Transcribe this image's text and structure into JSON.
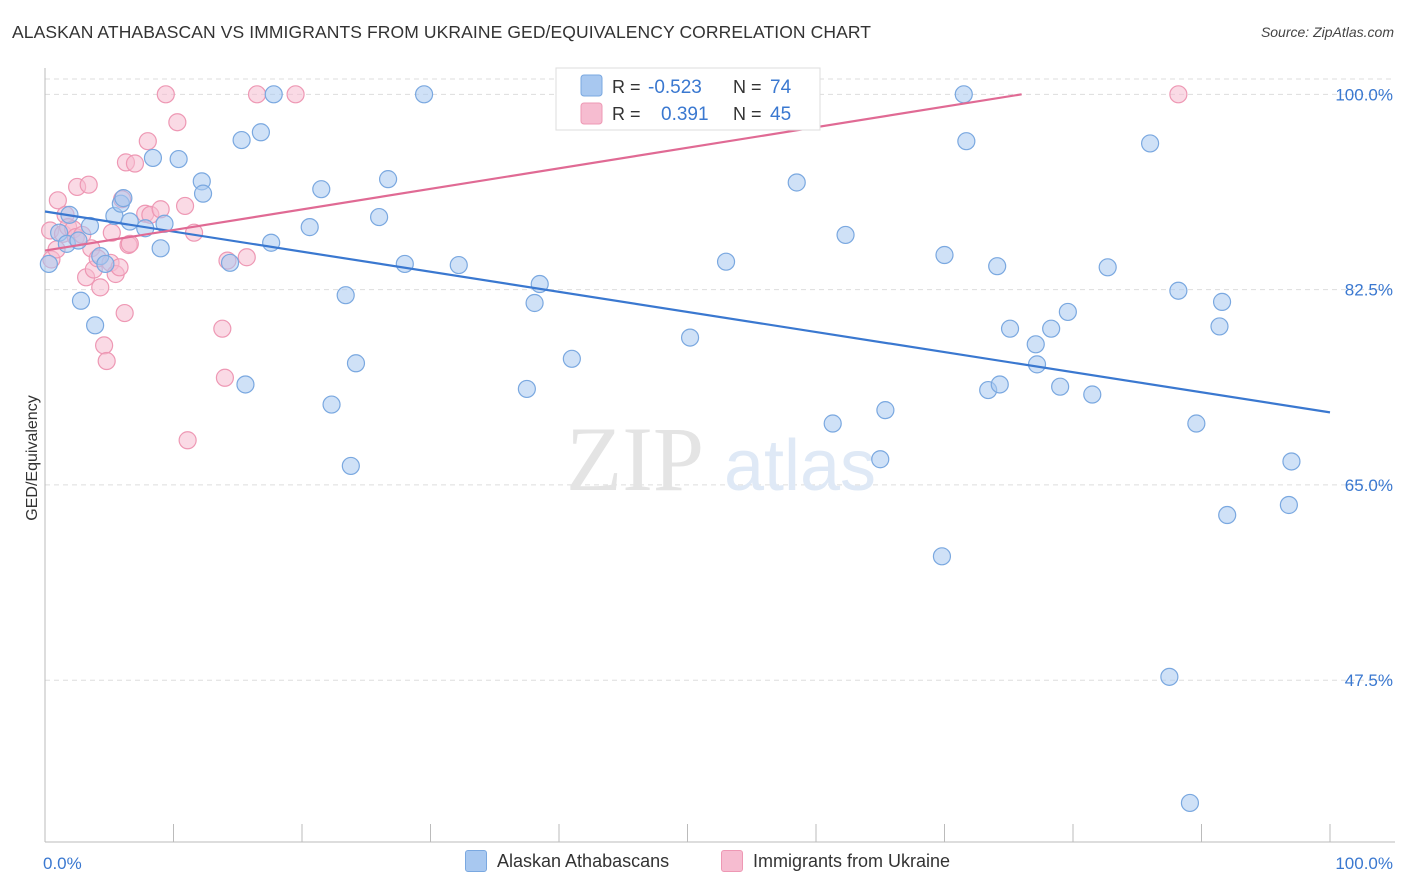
{
  "title": "ALASKAN ATHABASCAN VS IMMIGRANTS FROM UKRAINE GED/EQUIVALENCY CORRELATION CHART",
  "source": "Source: ZipAtlas.com",
  "watermark": {
    "zip": "ZIP",
    "atlas": "atlas"
  },
  "colors": {
    "blue_fill": "#a8c8f0",
    "blue_stroke": "#7aa8e0",
    "blue_line": "#3a78d0",
    "pink_fill": "#f6bcd0",
    "pink_stroke": "#ee98b4",
    "pink_line": "#e06a94",
    "tick_label": "#3a78d0",
    "grid": "#dddddd"
  },
  "legend": {
    "rows": [
      {
        "r_label": "R =",
        "r_value": "-0.523",
        "n_label": "N =",
        "n_value": "74"
      },
      {
        "r_label": "R =",
        "r_value": "0.391",
        "n_label": "N =",
        "n_value": "45"
      }
    ]
  },
  "bottom_legend": [
    "Alaskan Athabascans",
    "Immigrants from Ukraine"
  ],
  "chart_data": {
    "type": "scatter",
    "title": "ALASKAN ATHABASCAN VS IMMIGRANTS FROM UKRAINE GED/EQUIVALENCY CORRELATION CHART",
    "xlabel": "",
    "ylabel": "GED/Equivalency",
    "xlim": [
      0,
      100
    ],
    "ylim": [
      33,
      102
    ],
    "x_tick_labels": [
      "0.0%",
      "100.0%"
    ],
    "y_ticks": [
      47.5,
      65.0,
      82.5,
      100.0
    ],
    "y_tick_labels": [
      "47.5%",
      "65.0%",
      "82.5%",
      "100.0%"
    ],
    "grid": true,
    "legend_position": "top-center",
    "series": [
      {
        "name": "Alaskan Athabascans",
        "r": -0.523,
        "n": 74,
        "trend": {
          "x": [
            0,
            100
          ],
          "y": [
            89.5,
            71.5
          ]
        },
        "points": [
          [
            0.3,
            84.8
          ],
          [
            1.1,
            87.6
          ],
          [
            1.7,
            86.6
          ],
          [
            1.9,
            89.2
          ],
          [
            2.6,
            86.9
          ],
          [
            2.8,
            81.5
          ],
          [
            3.5,
            88.2
          ],
          [
            3.9,
            79.3
          ],
          [
            4.3,
            85.5
          ],
          [
            4.7,
            84.8
          ],
          [
            5.4,
            89.1
          ],
          [
            5.9,
            90.2
          ],
          [
            6.1,
            90.7
          ],
          [
            6.6,
            88.6
          ],
          [
            7.8,
            88.0
          ],
          [
            8.4,
            94.3
          ],
          [
            9.0,
            86.2
          ],
          [
            9.3,
            88.4
          ],
          [
            10.4,
            94.2
          ],
          [
            12.2,
            92.2
          ],
          [
            12.3,
            91.1
          ],
          [
            14.4,
            84.9
          ],
          [
            15.3,
            95.9
          ],
          [
            15.6,
            74.0
          ],
          [
            16.8,
            96.6
          ],
          [
            17.6,
            86.7
          ],
          [
            17.8,
            100.0
          ],
          [
            20.6,
            88.1
          ],
          [
            21.5,
            91.5
          ],
          [
            22.3,
            72.2
          ],
          [
            23.4,
            82.0
          ],
          [
            23.8,
            66.7
          ],
          [
            24.2,
            75.9
          ],
          [
            26.0,
            89.0
          ],
          [
            26.7,
            92.4
          ],
          [
            28.0,
            84.8
          ],
          [
            29.5,
            100.0
          ],
          [
            32.2,
            84.7
          ],
          [
            37.5,
            73.6
          ],
          [
            38.1,
            81.3
          ],
          [
            38.5,
            83.0
          ],
          [
            41.0,
            76.3
          ],
          [
            50.2,
            78.2
          ],
          [
            53.0,
            85.0
          ],
          [
            58.5,
            92.1
          ],
          [
            61.3,
            70.5
          ],
          [
            62.3,
            87.4
          ],
          [
            65.0,
            67.3
          ],
          [
            65.4,
            71.7
          ],
          [
            69.8,
            58.6
          ],
          [
            70.0,
            85.6
          ],
          [
            71.5,
            100.0
          ],
          [
            71.7,
            95.8
          ],
          [
            73.4,
            73.5
          ],
          [
            74.1,
            84.6
          ],
          [
            74.3,
            74.0
          ],
          [
            75.1,
            79.0
          ],
          [
            77.1,
            77.6
          ],
          [
            77.2,
            75.8
          ],
          [
            78.3,
            79.0
          ],
          [
            79.0,
            73.8
          ],
          [
            79.6,
            80.5
          ],
          [
            81.5,
            73.1
          ],
          [
            82.7,
            84.5
          ],
          [
            86.0,
            95.6
          ],
          [
            87.5,
            47.8
          ],
          [
            88.2,
            82.4
          ],
          [
            89.1,
            36.5
          ],
          [
            89.6,
            70.5
          ],
          [
            91.4,
            79.2
          ],
          [
            91.6,
            81.4
          ],
          [
            92.0,
            62.3
          ],
          [
            96.8,
            63.2
          ],
          [
            97.0,
            67.1
          ]
        ]
      },
      {
        "name": "Immigrants from Ukraine",
        "r": 0.391,
        "n": 45,
        "trend": {
          "x": [
            0,
            76
          ],
          "y": [
            86.0,
            100.0
          ]
        },
        "points": [
          [
            0.4,
            87.8
          ],
          [
            0.5,
            85.2
          ],
          [
            0.9,
            86.1
          ],
          [
            1.0,
            90.5
          ],
          [
            1.4,
            87.5
          ],
          [
            1.6,
            89.2
          ],
          [
            1.8,
            88.1
          ],
          [
            2.2,
            87.9
          ],
          [
            2.4,
            87.2
          ],
          [
            2.5,
            91.7
          ],
          [
            2.9,
            87.4
          ],
          [
            3.2,
            83.6
          ],
          [
            3.4,
            91.9
          ],
          [
            3.6,
            86.2
          ],
          [
            3.8,
            84.3
          ],
          [
            4.1,
            85.3
          ],
          [
            4.3,
            82.7
          ],
          [
            4.6,
            77.5
          ],
          [
            4.8,
            76.1
          ],
          [
            5.1,
            84.9
          ],
          [
            5.2,
            87.6
          ],
          [
            5.5,
            83.9
          ],
          [
            5.8,
            84.5
          ],
          [
            6.0,
            90.6
          ],
          [
            6.2,
            80.4
          ],
          [
            6.3,
            93.9
          ],
          [
            6.5,
            86.5
          ],
          [
            6.6,
            86.6
          ],
          [
            7.0,
            93.8
          ],
          [
            7.8,
            89.3
          ],
          [
            8.0,
            95.8
          ],
          [
            8.2,
            89.2
          ],
          [
            9.0,
            89.7
          ],
          [
            9.4,
            100.0
          ],
          [
            10.3,
            97.5
          ],
          [
            10.9,
            90.0
          ],
          [
            11.1,
            69.0
          ],
          [
            11.6,
            87.6
          ],
          [
            13.8,
            79.0
          ],
          [
            14.0,
            74.6
          ],
          [
            16.5,
            100.0
          ],
          [
            19.5,
            100.0
          ],
          [
            14.2,
            85.1
          ],
          [
            15.7,
            85.4
          ],
          [
            88.2,
            100.0
          ]
        ]
      }
    ]
  }
}
